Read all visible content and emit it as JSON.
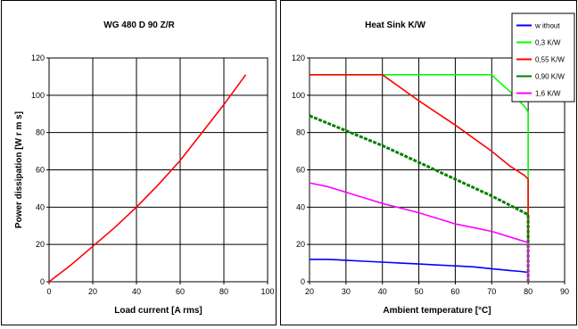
{
  "chart_data": [
    {
      "type": "line",
      "title": "WG 480 D 90 Z/R",
      "xlabel": "Load current [A rms]",
      "ylabel": "Power dissipation  [W r m s]",
      "xlim": [
        0,
        100
      ],
      "ylim": [
        0,
        120
      ],
      "xticks": [
        0,
        20,
        40,
        60,
        80,
        100
      ],
      "yticks": [
        0,
        20,
        40,
        60,
        80,
        100,
        120
      ],
      "grid": true,
      "series": [
        {
          "color": "#ff0000",
          "x": [
            0,
            10,
            20,
            30,
            40,
            50,
            60,
            70,
            80,
            90
          ],
          "y": [
            0,
            9,
            19,
            29,
            40,
            52,
            65,
            80,
            95,
            111
          ]
        }
      ]
    },
    {
      "type": "line",
      "title": "Heat Sink K/W",
      "xlabel": "Ambient temperature [°C]",
      "ylabel": "",
      "xlim": [
        20,
        90
      ],
      "ylim": [
        0,
        120
      ],
      "xticks": [
        20,
        30,
        40,
        50,
        60,
        70,
        80,
        90
      ],
      "yticks": [
        0,
        20,
        40,
        60,
        80,
        100,
        120
      ],
      "grid": true,
      "legend_position": "top-right",
      "series": [
        {
          "name": "w ithout",
          "color": "#0000ff",
          "x": [
            20,
            25,
            30,
            35,
            40,
            45,
            50,
            55,
            60,
            65,
            70,
            75,
            78,
            80
          ],
          "y": [
            12,
            12,
            11.5,
            11,
            10.5,
            10,
            9.5,
            9,
            8.5,
            8,
            7,
            6,
            5.5,
            5
          ]
        },
        {
          "name": "0,3 K/W",
          "color": "#00ff00",
          "x": [
            20,
            40,
            70,
            71,
            75,
            79,
            80,
            80
          ],
          "y": [
            111,
            111,
            111,
            109,
            102,
            94,
            91,
            0
          ]
        },
        {
          "name": "0,55 K/W",
          "color": "#ff0000",
          "x": [
            20,
            40,
            50,
            60,
            70,
            75,
            79,
            80,
            80
          ],
          "y": [
            111,
            111,
            97,
            84,
            70,
            62,
            57,
            55,
            0
          ]
        },
        {
          "name": "0,90 K/W",
          "color": "#008000",
          "x": [
            20,
            30,
            40,
            50,
            60,
            70,
            75,
            80,
            80
          ],
          "y": [
            89,
            81,
            73,
            64,
            55,
            46,
            41,
            36,
            0
          ]
        },
        {
          "name": "1,6 K/W",
          "color": "#ff00ff",
          "x": [
            20,
            25,
            30,
            35,
            40,
            45,
            50,
            55,
            60,
            65,
            70,
            75,
            80,
            80
          ],
          "y": [
            53,
            51,
            48,
            45,
            42,
            39.5,
            37,
            34,
            31,
            29,
            27,
            24,
            21,
            0
          ]
        }
      ]
    }
  ]
}
